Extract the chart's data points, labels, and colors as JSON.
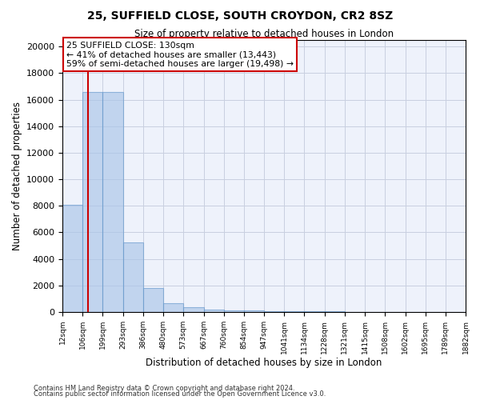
{
  "title1": "25, SUFFIELD CLOSE, SOUTH CROYDON, CR2 8SZ",
  "title2": "Size of property relative to detached houses in London",
  "xlabel": "Distribution of detached houses by size in London",
  "ylabel": "Number of detached properties",
  "bin_edges": [
    12,
    106,
    199,
    293,
    386,
    480,
    573,
    667,
    760,
    854,
    947,
    1041,
    1134,
    1228,
    1321,
    1415,
    1508,
    1602,
    1695,
    1789,
    1882
  ],
  "bar_heights": [
    8100,
    16600,
    16600,
    5250,
    1800,
    650,
    350,
    200,
    150,
    100,
    75,
    55,
    45,
    35,
    28,
    22,
    18,
    14,
    10,
    7
  ],
  "bar_color": "#aac4e8",
  "bar_edge_color": "#6699cc",
  "bar_alpha": 0.65,
  "vline_x": 130,
  "vline_color": "#cc0000",
  "annotation_text": "25 SUFFIELD CLOSE: 130sqm\n← 41% of detached houses are smaller (13,443)\n59% of semi-detached houses are larger (19,498) →",
  "annotation_box_color": "#ffffff",
  "annotation_box_edge": "#cc0000",
  "ylim": [
    0,
    20500
  ],
  "yticks": [
    0,
    2000,
    4000,
    6000,
    8000,
    10000,
    12000,
    14000,
    16000,
    18000,
    20000
  ],
  "footnote1": "Contains HM Land Registry data © Crown copyright and database right 2024.",
  "footnote2": "Contains public sector information licensed under the Open Government Licence v3.0.",
  "bg_color": "#eef2fb",
  "grid_color": "#c8cfe0"
}
